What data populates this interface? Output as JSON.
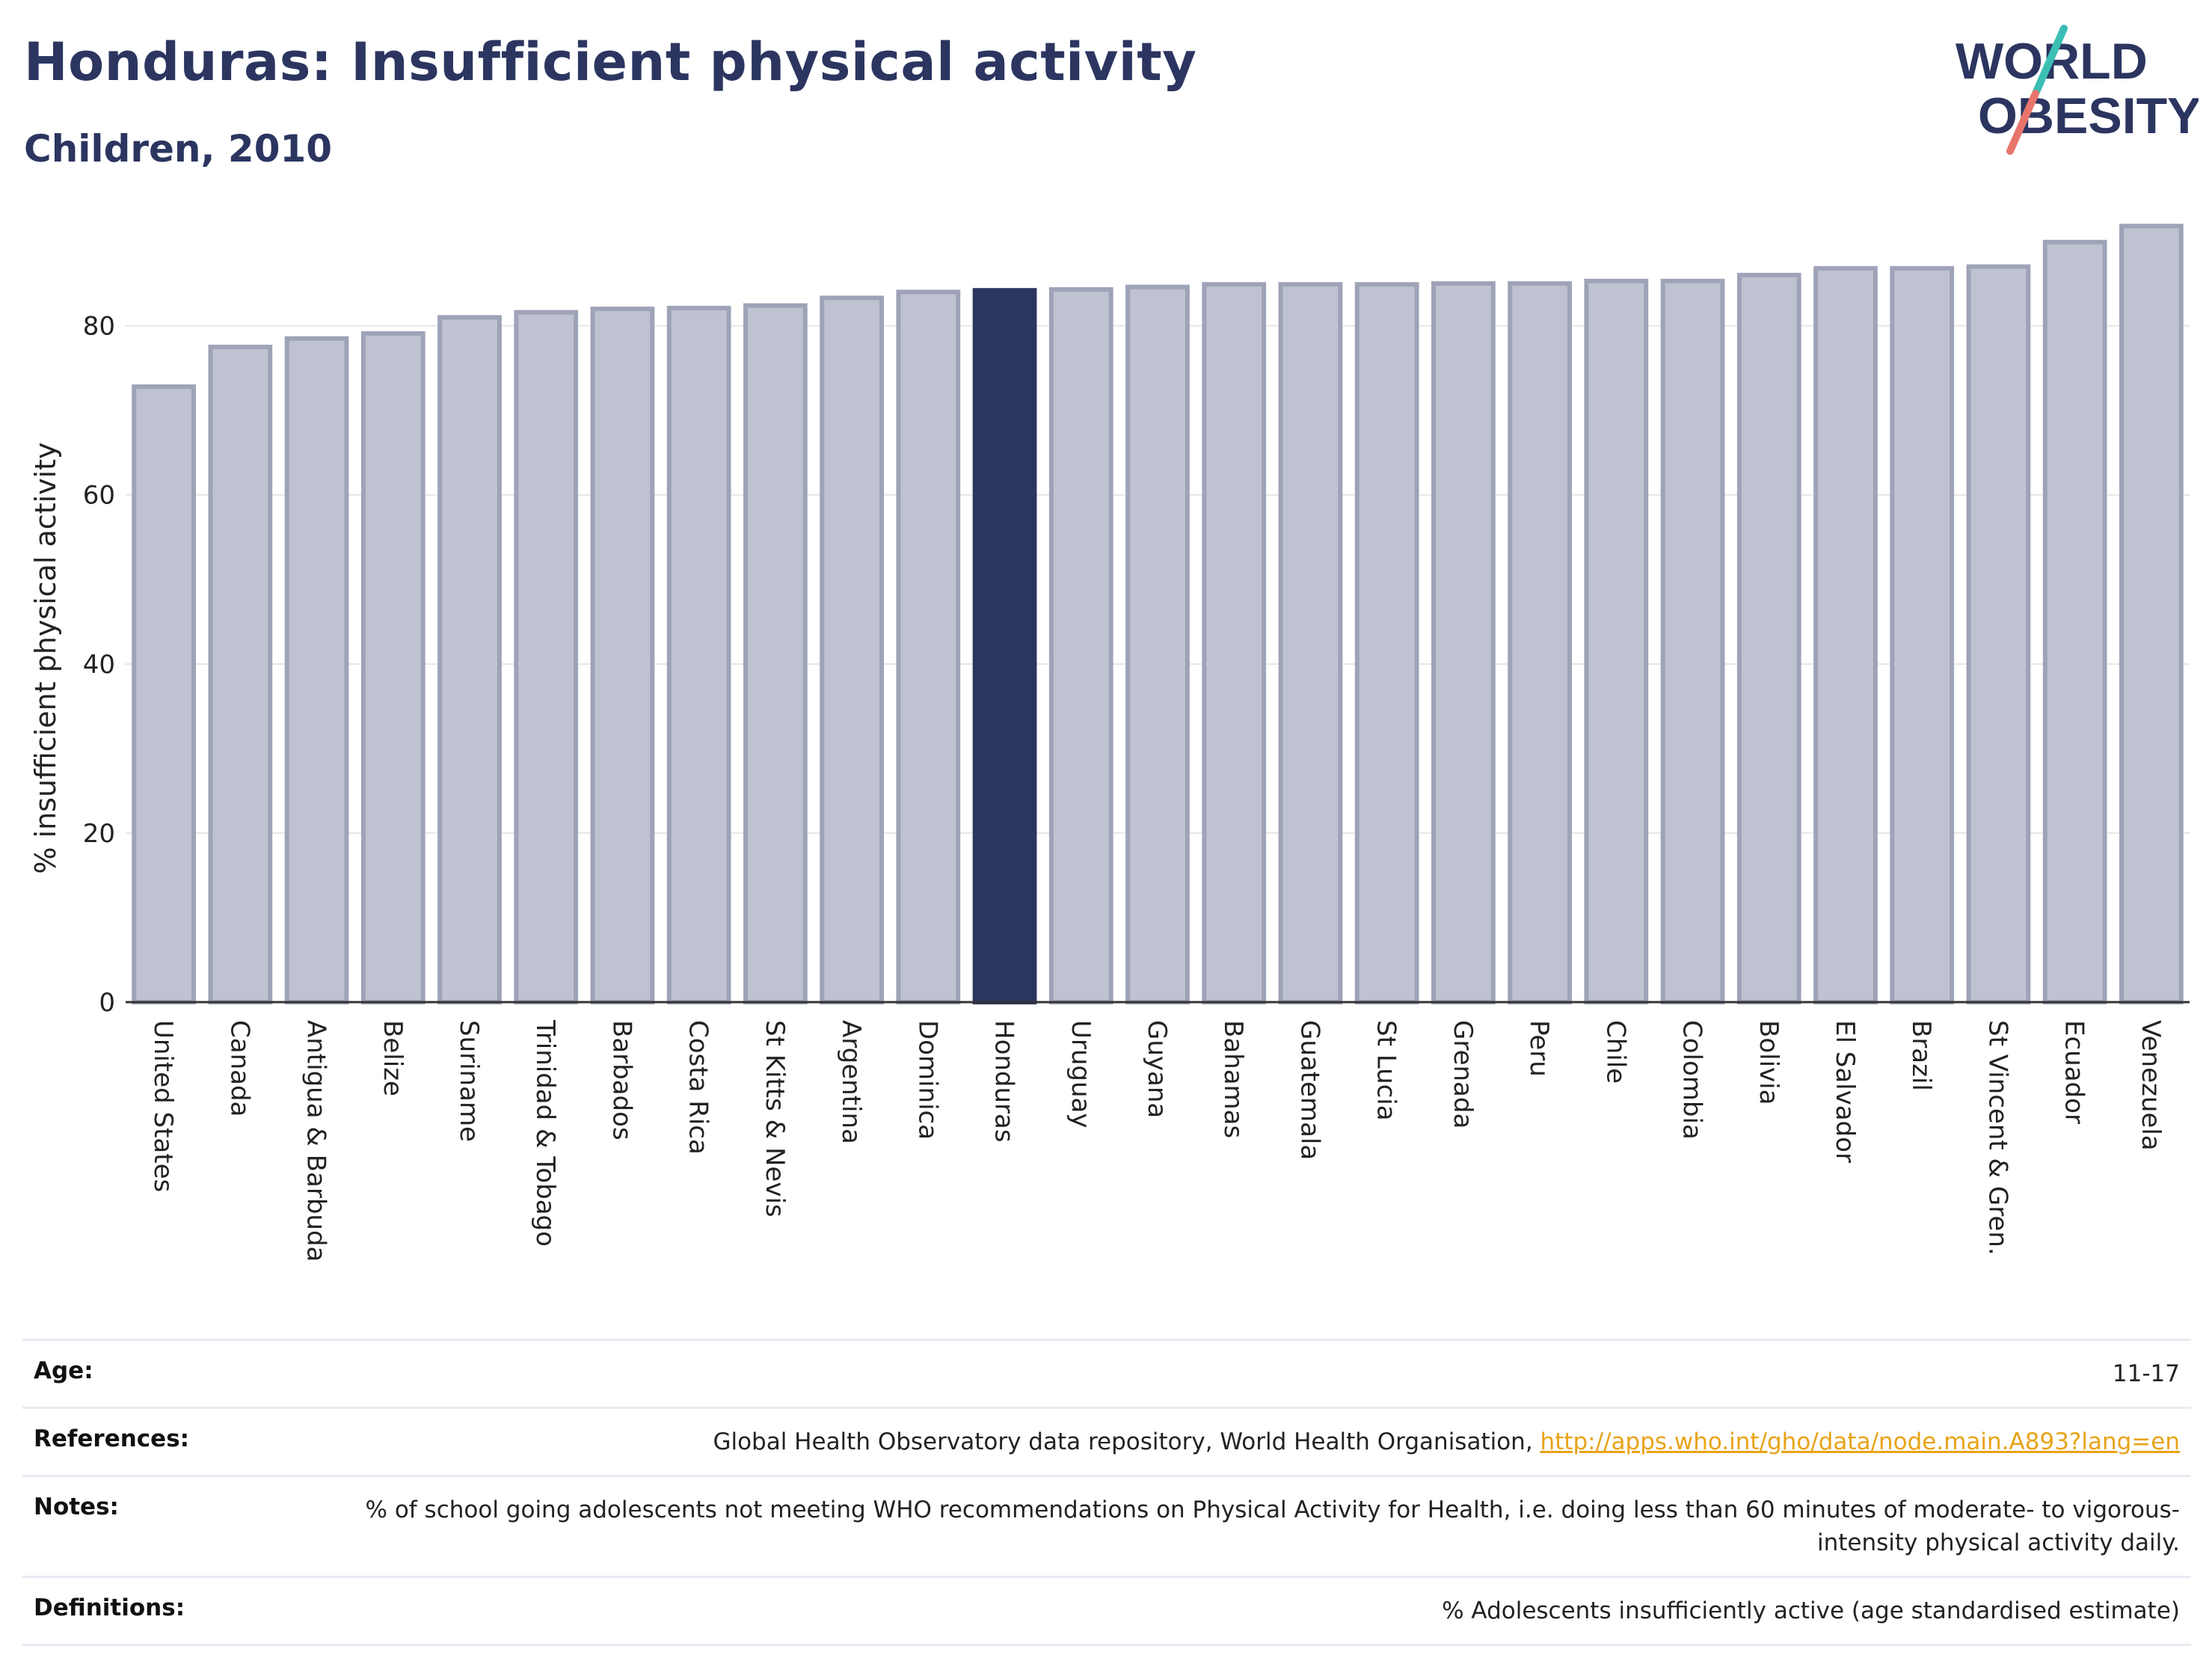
{
  "header": {
    "title": "Honduras: Insufficient physical activity",
    "subtitle": "Children, 2010"
  },
  "logo": {
    "line1": "WORLD",
    "line2": "OBESITY"
  },
  "colors": {
    "highlight": "#2b3560",
    "bar_fill": "#bfc2d0",
    "bar_stroke": "#9ea3b8",
    "accent_teal": "#3bbfb5",
    "accent_coral": "#e8756b",
    "link": "#e8a317"
  },
  "chart_data": {
    "type": "bar",
    "title": "Honduras: Insufficient physical activity",
    "subtitle": "Children, 2010",
    "xlabel": "",
    "ylabel": "% insufficient physical activity",
    "ylim": [
      0,
      92
    ],
    "yticks": [
      0,
      20,
      40,
      60,
      80
    ],
    "grid": true,
    "highlight": "Honduras",
    "categories": [
      "United States",
      "Canada",
      "Antigua & Barbuda",
      "Belize",
      "Suriname",
      "Trinidad & Tobago",
      "Barbados",
      "Costa Rica",
      "St Kitts & Nevis",
      "Argentina",
      "Dominica",
      "Honduras",
      "Uruguay",
      "Guyana",
      "Bahamas",
      "Guatemala",
      "St Lucia",
      "Grenada",
      "Peru",
      "Chile",
      "Colombia",
      "Bolivia",
      "El Salvador",
      "Brazil",
      "St Vincent & Gren.",
      "Ecuador",
      "Venezuela"
    ],
    "values": [
      72.8,
      77.5,
      78.5,
      79.1,
      81.0,
      81.6,
      82.0,
      82.1,
      82.4,
      83.3,
      84.0,
      84.2,
      84.3,
      84.6,
      84.9,
      84.9,
      84.9,
      85.0,
      85.0,
      85.3,
      85.3,
      86.0,
      86.8,
      86.8,
      87.0,
      89.9,
      91.8
    ]
  },
  "meta": {
    "age_label": "Age:",
    "age_value": "11-17",
    "references_label": "References:",
    "references_text": "Global Health Observatory data repository, World Health Organisation, ",
    "references_link": "http://apps.who.int/gho/data/node.main.A893?lang=en",
    "notes_label": "Notes:",
    "notes_value": "% of school going adolescents not meeting WHO recommendations on Physical Activity for Health, i.e. doing less than 60 minutes of moderate- to vigorous-intensity physical activity daily.",
    "definitions_label": "Definitions:",
    "definitions_value": "% Adolescents insufficiently active (age standardised estimate)"
  }
}
